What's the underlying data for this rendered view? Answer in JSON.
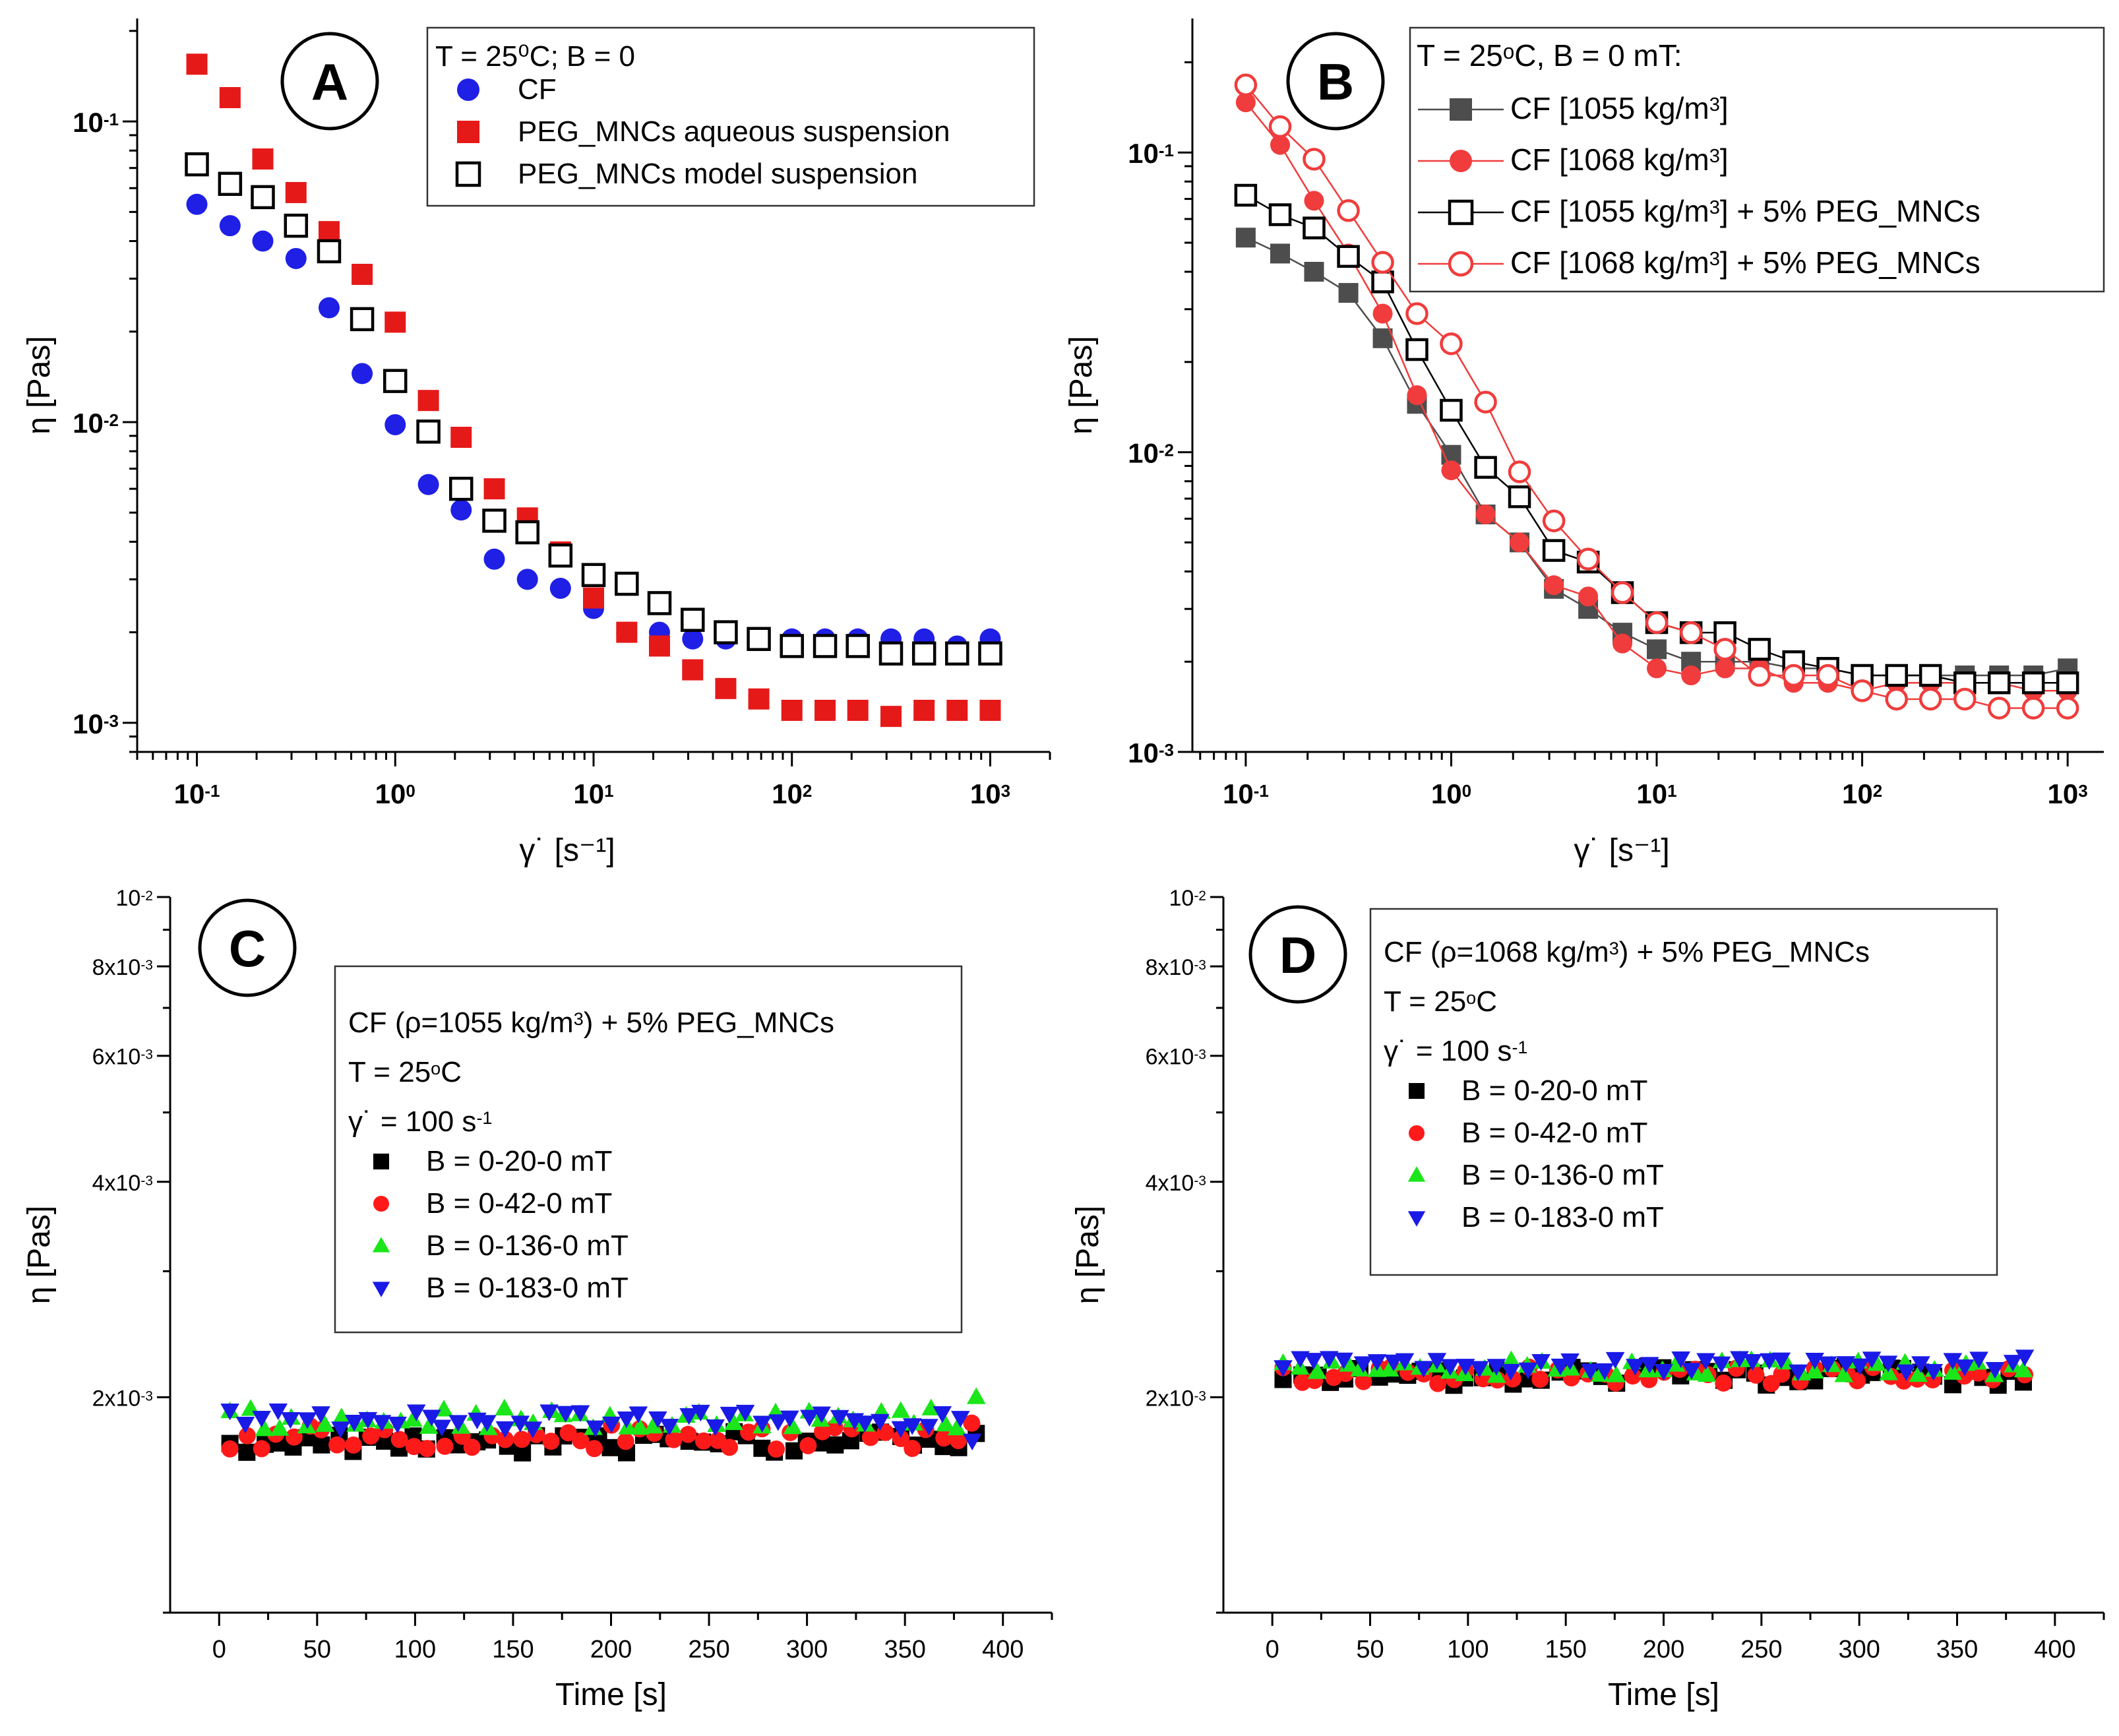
{
  "chart_data": [
    {
      "panel": "A",
      "type": "scatter",
      "xscale": "log",
      "yscale": "log",
      "xlim": [
        0.05,
        2000
      ],
      "ylim": [
        0.0008,
        0.22
      ],
      "xlabel": "γ˙  [s⁻¹]",
      "ylabel": "η  [Pas]",
      "xticks": [
        {
          "v": 0.1,
          "base": "10",
          "exp": "-1"
        },
        {
          "v": 1,
          "base": "10",
          "exp": "0"
        },
        {
          "v": 10,
          "base": "10",
          "exp": "1"
        },
        {
          "v": 100,
          "base": "10",
          "exp": "2"
        },
        {
          "v": 1000,
          "base": "10",
          "exp": "3"
        }
      ],
      "yticks": [
        {
          "v": 0.001,
          "base": "10",
          "exp": "-3"
        },
        {
          "v": 0.01,
          "base": "10",
          "exp": "-2"
        },
        {
          "v": 0.1,
          "base": "10",
          "exp": "-1"
        }
      ],
      "legend_title": "T = 25⁰C; B = 0",
      "x": [
        0.1,
        0.147,
        0.215,
        0.316,
        0.464,
        0.681,
        1,
        1.47,
        2.15,
        3.16,
        4.64,
        6.81,
        10,
        14.7,
        21.5,
        31.6,
        46.4,
        68.1,
        100,
        147,
        215,
        316,
        464,
        681,
        1000
      ],
      "series": [
        {
          "name": "CF",
          "marker": "circle",
          "color": "#1f1fe6",
          "filled": true,
          "values": [
            0.053,
            0.045,
            0.04,
            0.035,
            0.024,
            0.0145,
            0.0098,
            0.0062,
            0.0051,
            0.0035,
            0.003,
            0.0028,
            0.0024,
            0.002,
            0.002,
            0.0019,
            0.0019,
            0.0019,
            0.0019,
            0.0019,
            0.0019,
            0.0019,
            0.0019,
            0.0018,
            0.0019
          ]
        },
        {
          "name": "PEG_MNCs aqueous suspension",
          "marker": "square",
          "color": "#e61919",
          "filled": true,
          "values": [
            0.155,
            0.12,
            0.075,
            0.058,
            0.043,
            0.031,
            0.0215,
            0.0118,
            0.0089,
            0.006,
            0.0048,
            0.0037,
            0.0026,
            0.002,
            0.0018,
            0.0015,
            0.0013,
            0.0012,
            0.0011,
            0.0011,
            0.0011,
            0.00105,
            0.0011,
            0.0011,
            0.0011
          ]
        },
        {
          "name": "PEG_MNCs model suspension",
          "marker": "square",
          "color": "#000000",
          "filled": false,
          "values": [
            0.072,
            0.062,
            0.056,
            0.045,
            0.037,
            0.022,
            0.0137,
            0.0093,
            0.006,
            0.0047,
            0.0043,
            0.0036,
            0.0031,
            0.0029,
            0.0025,
            0.0022,
            0.002,
            0.0019,
            0.0018,
            0.0018,
            0.0018,
            0.0017,
            0.0017,
            0.0017,
            0.0017
          ]
        }
      ]
    },
    {
      "panel": "B",
      "type": "line",
      "xscale": "log",
      "yscale": "log",
      "xlim": [
        0.055,
        1500
      ],
      "ylim": [
        0.001,
        0.28
      ],
      "xlabel": "γ˙  [s⁻¹]",
      "ylabel": "η  [Pas]",
      "xticks": [
        {
          "v": 0.1,
          "base": "10",
          "exp": "-1"
        },
        {
          "v": 1,
          "base": "10",
          "exp": "0"
        },
        {
          "v": 10,
          "base": "10",
          "exp": "1"
        },
        {
          "v": 100,
          "base": "10",
          "exp": "2"
        },
        {
          "v": 1000,
          "base": "10",
          "exp": "3"
        }
      ],
      "yticks": [
        {
          "v": 0.001,
          "base": "10",
          "exp": "-3"
        },
        {
          "v": 0.01,
          "base": "10",
          "exp": "-2"
        },
        {
          "v": 0.1,
          "base": "10",
          "exp": "-1"
        }
      ],
      "legend_title": "T = 25ᵒC, B = 0 mT:",
      "x": [
        0.1,
        0.147,
        0.215,
        0.316,
        0.464,
        0.681,
        1,
        1.47,
        2.15,
        3.16,
        4.64,
        6.81,
        10,
        14.7,
        21.5,
        31.6,
        46.4,
        68.1,
        100,
        147,
        215,
        316,
        464,
        681,
        1000
      ],
      "series": [
        {
          "name_pre": "CF [1055 kg/m",
          "name_sup": "3",
          "name_post": "]",
          "marker": "square",
          "color": "#4d4d4d",
          "filled": true,
          "values": [
            0.052,
            0.046,
            0.04,
            0.034,
            0.024,
            0.0145,
            0.0098,
            0.0062,
            0.005,
            0.0035,
            0.003,
            0.0025,
            0.0022,
            0.002,
            0.002,
            0.002,
            0.0019,
            0.0019,
            0.0018,
            0.0018,
            0.0018,
            0.0018,
            0.0018,
            0.0018,
            0.0019
          ]
        },
        {
          "name_pre": "CF [1068 kg/m",
          "name_sup": "3",
          "name_post": "]",
          "marker": "circle",
          "color": "#f03c3c",
          "filled": true,
          "values": [
            0.147,
            0.106,
            0.069,
            0.046,
            0.029,
            0.0155,
            0.0087,
            0.0062,
            0.005,
            0.0036,
            0.0033,
            0.0023,
            0.0019,
            0.0018,
            0.0019,
            0.0019,
            0.0017,
            0.0017,
            0.0016,
            0.0017,
            0.0017,
            0.0017,
            0.0017,
            0.0016,
            0.0016
          ]
        },
        {
          "name_pre": "CF [1055 kg/m",
          "name_sup": "3",
          "name_post": "] + 5% PEG_MNCs",
          "marker": "square",
          "color": "#000000",
          "filled": false,
          "values": [
            0.072,
            0.062,
            0.056,
            0.045,
            0.037,
            0.022,
            0.0138,
            0.0089,
            0.0071,
            0.0047,
            0.0043,
            0.0034,
            0.0027,
            0.0025,
            0.0025,
            0.0022,
            0.002,
            0.0019,
            0.0018,
            0.0018,
            0.0018,
            0.0017,
            0.0017,
            0.0017,
            0.0017
          ]
        },
        {
          "name_pre": "CF [1068 kg/m",
          "name_sup": "3",
          "name_post": "] + 5% PEG_MNCs",
          "marker": "circle",
          "color": "#f03c3c",
          "filled": false,
          "values": [
            0.168,
            0.122,
            0.095,
            0.064,
            0.043,
            0.029,
            0.023,
            0.0147,
            0.0086,
            0.0059,
            0.0044,
            0.0034,
            0.0027,
            0.0025,
            0.0022,
            0.0018,
            0.0018,
            0.0018,
            0.0016,
            0.0015,
            0.0015,
            0.0015,
            0.0014,
            0.0014,
            0.0014
          ]
        }
      ]
    },
    {
      "panel": "C",
      "type": "scatter",
      "xscale": "linear",
      "yscale": "log",
      "xlim": [
        -25,
        425
      ],
      "ylim": [
        0.001,
        0.01
      ],
      "xlabel": "Time  [s]",
      "ylabel": "η  [Pas]",
      "xticks": [
        0,
        50,
        100,
        150,
        200,
        250,
        300,
        350,
        400
      ],
      "yticks": [
        {
          "v": 0.002,
          "label": "2x10",
          "exp": "-3"
        },
        {
          "v": 0.004,
          "label": "4x10",
          "exp": "-3"
        },
        {
          "v": 0.006,
          "label": "6x10",
          "exp": "-3"
        },
        {
          "v": 0.008,
          "label": "8x10",
          "exp": "-3"
        },
        {
          "v": 0.01,
          "label": "10",
          "exp": "-2"
        }
      ],
      "legend_lines": [
        {
          "pre": "CF (ρ=1055 kg/m",
          "sup": "3",
          "post": ") + 5% PEG_MNCs"
        },
        {
          "pre": "T = 25",
          "sup": "o",
          "post": "C"
        },
        {
          "pre": "γ˙ = 100 s",
          "sup": "-1",
          "post": ""
        }
      ],
      "series": [
        {
          "name": "B = 0-20-0 mT",
          "marker": "square",
          "color": "#000000",
          "base": 0.00173,
          "amp": 6e-05,
          "seed": 11,
          "last": 0.00178
        },
        {
          "name": "B = 0-42-0 mT",
          "marker": "circle",
          "color": "#ff1a1a",
          "base": 0.00176,
          "amp": 7e-05,
          "seed": 23,
          "last": 0.00184
        },
        {
          "name": "B = 0-136-0 mT",
          "marker": "triangle-up",
          "color": "#1ae61a",
          "base": 0.00186,
          "amp": 7e-05,
          "seed": 37,
          "last": 0.002
        },
        {
          "name": "B = 0-183-0 mT",
          "marker": "triangle-down",
          "color": "#1a1ae6",
          "base": 0.00186,
          "amp": 6e-05,
          "seed": 53,
          "last": 0.00174
        }
      ],
      "time_points": {
        "start": 7,
        "end": 385,
        "count": 50
      }
    },
    {
      "panel": "D",
      "type": "scatter",
      "xscale": "linear",
      "yscale": "log",
      "xlim": [
        -25,
        425
      ],
      "ylim": [
        0.001,
        0.01
      ],
      "xlabel": "Time  [s]",
      "ylabel": "η  [Pas]",
      "xticks": [
        0,
        50,
        100,
        150,
        200,
        250,
        300,
        350,
        400
      ],
      "yticks": [
        {
          "v": 0.002,
          "label": "2x10",
          "exp": "-3"
        },
        {
          "v": 0.004,
          "label": "4x10",
          "exp": "-3"
        },
        {
          "v": 0.006,
          "label": "6x10",
          "exp": "-3"
        },
        {
          "v": 0.008,
          "label": "8x10",
          "exp": "-3"
        },
        {
          "v": 0.01,
          "label": "10",
          "exp": "-2"
        }
      ],
      "legend_lines": [
        {
          "pre": "CF (ρ=1068 kg/m",
          "sup": "3",
          "post": ") + 5% PEG_MNCs"
        },
        {
          "pre": "T = 25",
          "sup": "o",
          "post": "C"
        },
        {
          "pre": "γ˙ = 100 s",
          "sup": "-1",
          "post": ""
        }
      ],
      "series": [
        {
          "name": "B = 0-20-0 mT",
          "marker": "square",
          "color": "#000000",
          "base": 0.00214,
          "amp": 7e-05,
          "seed": 71,
          "last": 0.0021
        },
        {
          "name": "B = 0-42-0 mT",
          "marker": "circle",
          "color": "#ff1a1a",
          "base": 0.00215,
          "amp": 6e-05,
          "seed": 83,
          "last": 0.00215
        },
        {
          "name": "B = 0-136-0 mT",
          "marker": "triangle-up",
          "color": "#1ae61a",
          "base": 0.0022,
          "amp": 6e-05,
          "seed": 97,
          "last": 0.00218
        },
        {
          "name": "B = 0-183-0 mT",
          "marker": "triangle-down",
          "color": "#1a1ae6",
          "base": 0.00222,
          "amp": 5e-05,
          "seed": 109,
          "last": 0.00228
        }
      ],
      "time_points": {
        "start": 7,
        "end": 385,
        "count": 50
      }
    }
  ]
}
